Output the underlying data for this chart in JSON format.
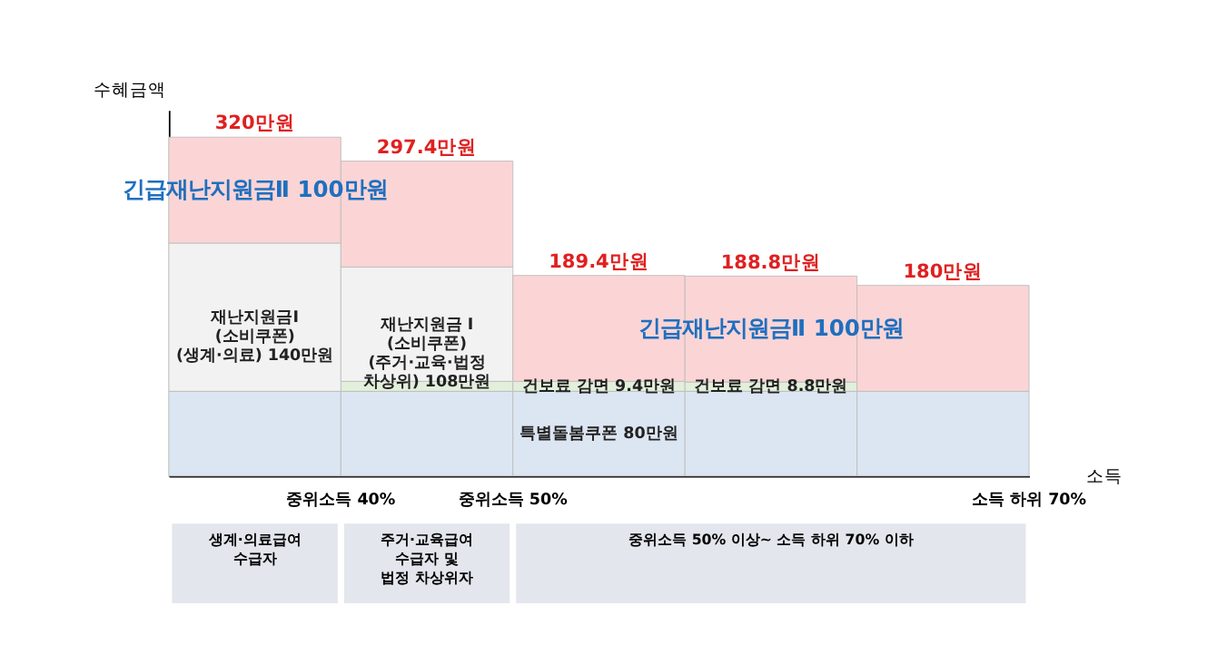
{
  "chart_data": {
    "type": "bar",
    "stacked": true,
    "categories": [
      null,
      null,
      null,
      null,
      null
    ],
    "xlabel": "소득",
    "ylabel": "수혜금액",
    "series": [
      {
        "color": "#dce6f2",
        "values": [
          80,
          80,
          80,
          80,
          80
        ],
        "value_labels": [
          null,
          null,
          "특별돌봄쿠폰 80만원",
          null,
          null
        ]
      },
      {
        "color": "#e2efda",
        "values": [
          null,
          9.4,
          9.4,
          8.8,
          null
        ],
        "value_labels": [
          null,
          null,
          "건보료 감면 9.4만원",
          "건보료 감면 8.8만원",
          null
        ]
      },
      {
        "color": "#f2f2f2",
        "values": [
          140,
          108,
          null,
          null,
          null
        ],
        "value_labels": [
          "재난지원금Ⅰ\n(소비쿠폰)\n(생계·의료) 140만원",
          "재난지원금 Ⅰ\n(소비쿠폰)\n(주거·교육·법정\n차상위) 108만원",
          null,
          null,
          null
        ]
      },
      {
        "color": "#fbd5d5",
        "values": [
          100,
          100,
          100,
          100,
          100
        ],
        "value_labels": [
          "긴급재난지원금Ⅱ 100만원",
          null,
          null,
          "긴급재난지원금Ⅱ 100만원",
          null
        ]
      }
    ],
    "totals": [
      "320만원",
      "297.4만원",
      "189.4만원",
      "188.8만원",
      "180만원"
    ],
    "annotations": [
      "중위소득 40%",
      "중위소득 50%",
      "소득 하위 70%",
      "생계·의료급여\n수급자",
      "주거·교육급여\n수급자 및\n법정 차상위자",
      "중위소득 50% 이상~ 소득 하위 70% 이하"
    ],
    "tick_labels": false,
    "grid": false
  }
}
